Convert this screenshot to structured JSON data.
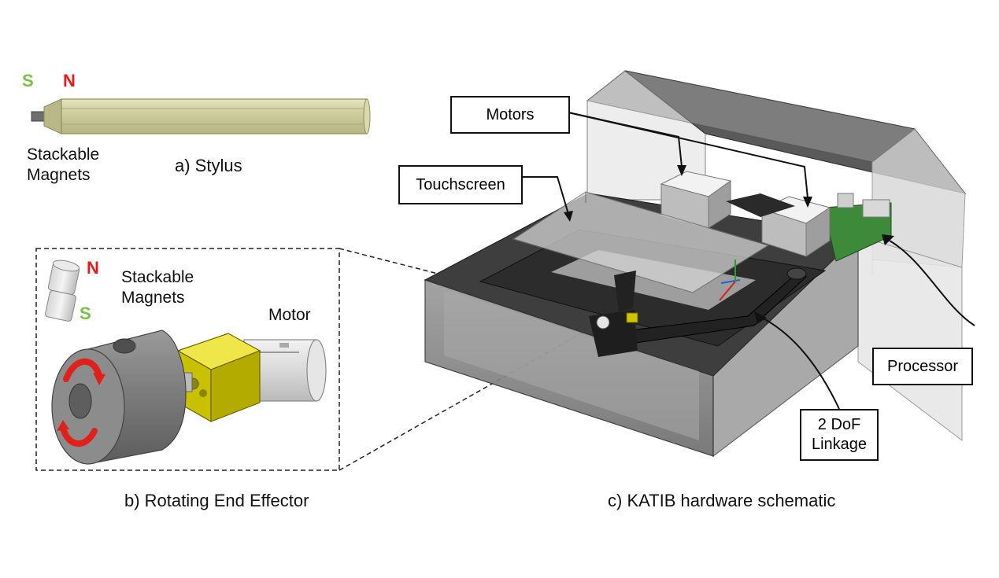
{
  "stylus": {
    "pole_s": "S",
    "pole_n": "N",
    "magnets_label": [
      "Stackable",
      "Magnets"
    ],
    "caption": "a) Stylus"
  },
  "end_effector": {
    "pole_n": "N",
    "pole_s": "S",
    "magnets_label": [
      "Stackable",
      "Magnets"
    ],
    "motor_label": "Motor",
    "caption": "b) Rotating End Effector"
  },
  "hardware": {
    "motors_label": "Motors",
    "touchscreen_label": "Touchscreen",
    "processor_label": "Processor",
    "linkage_label": [
      "2 DoF",
      "Linkage"
    ],
    "caption": "c) KATIB hardware schematic"
  },
  "colors": {
    "magnet_green": "#78c24a",
    "magnet_red": "#e51b1b",
    "stylus_body": "#cfcf9e",
    "effector_yellow": "#d8d000",
    "rotation_arrow": "#e0201a"
  }
}
